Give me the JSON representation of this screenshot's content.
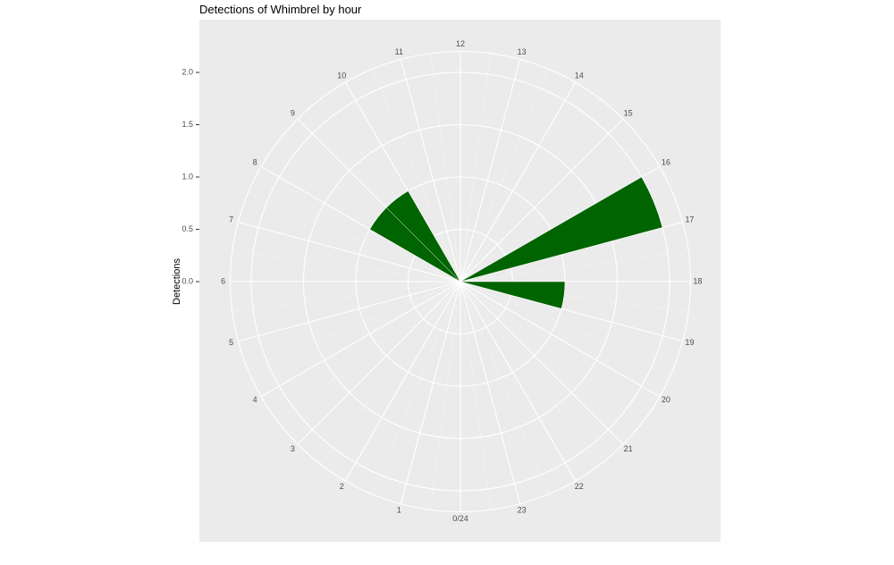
{
  "chart_data": {
    "type": "polar-bar",
    "title": "Detections of Whimbrel by hour",
    "y_label": "Detections",
    "x": [
      0,
      1,
      2,
      3,
      4,
      5,
      6,
      7,
      8,
      9,
      10,
      11,
      12,
      13,
      14,
      15,
      16,
      17,
      18,
      19,
      20,
      21,
      22,
      23
    ],
    "values": [
      0,
      0,
      0,
      0,
      0,
      0,
      0,
      0,
      1,
      1,
      0,
      0,
      0,
      0,
      0,
      0,
      2,
      0,
      1,
      0,
      0,
      0,
      0,
      0
    ],
    "color": "#006400",
    "xlim": [
      0,
      24
    ],
    "xticks": [
      {
        "value": 0,
        "label": "0/24"
      },
      1,
      2,
      3,
      4,
      5,
      6,
      7,
      8,
      9,
      10,
      11,
      12,
      13,
      14,
      15,
      16,
      17,
      18,
      19,
      20,
      21,
      22,
      23
    ],
    "ylim": [
      0,
      2.2
    ],
    "yticks": [
      {
        "value": 0,
        "label": "0.0"
      },
      {
        "value": 0.5,
        "label": "0.5"
      },
      {
        "value": 1,
        "label": "1.0"
      },
      {
        "value": 1.5,
        "label": "1.5"
      },
      {
        "value": 2,
        "label": "2.0"
      }
    ],
    "grid": true
  }
}
